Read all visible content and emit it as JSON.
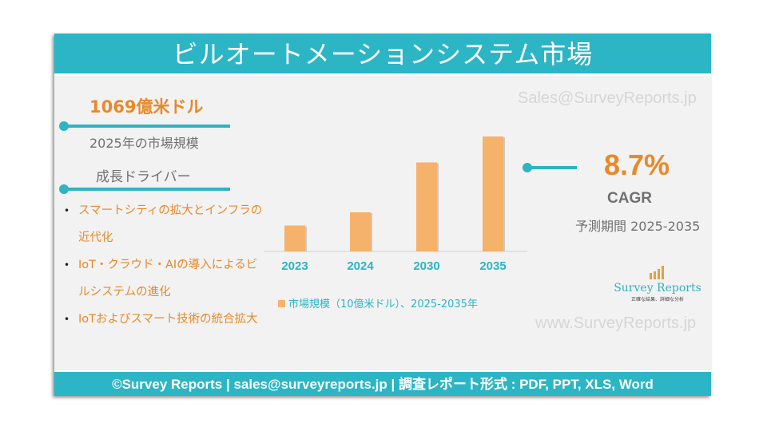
{
  "title": "ビルオートメーションシステム市場",
  "watermark_top": "Sales@SurveyReports.jp",
  "watermark_bottom": "www.SurveyReports.jp",
  "market_size": {
    "value": "1069億米ドル",
    "label": "2025年の市場規模"
  },
  "drivers": {
    "heading": "成長ドライバー",
    "items": [
      "スマートシティの拡大とインフラの近代化",
      "IoT・クラウド・AIの導入によるビルシステムの進化",
      "IoTおよびスマート技術の統合拡大"
    ]
  },
  "cagr": {
    "value": "8.7%",
    "label": "CAGR",
    "period": "予測期間 2025-2035"
  },
  "logo": {
    "name": "Survey Reports",
    "tagline": "正確な結果、詳細な分析"
  },
  "colors": {
    "accent": "#2bb5c5",
    "orange": "#e8892a",
    "bar": "#f5b26b"
  },
  "chart_data": {
    "type": "bar",
    "categories": [
      "2023",
      "2024",
      "2030",
      "2035"
    ],
    "values": [
      65,
      98,
      223,
      288
    ],
    "legend": "市場規模（10億米ドル）、2025-2035年",
    "ylim": [
      0,
      300
    ],
    "grid": false,
    "legend_placement": "bottom"
  },
  "footer": "©Survey Reports | sales@surveyreports.jp | 調査レポート形式 : PDF, PPT, XLS, Word"
}
